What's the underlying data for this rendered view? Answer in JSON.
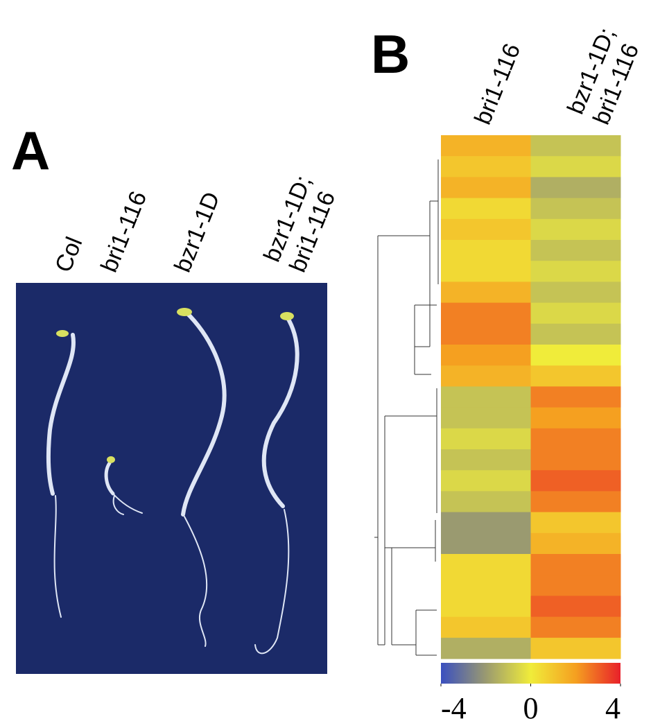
{
  "panel_a": {
    "label": "A",
    "lanes": [
      {
        "lines": [
          "Col"
        ]
      },
      {
        "lines": [
          "bri1-116"
        ]
      },
      {
        "lines": [
          "bzr1-1D"
        ]
      },
      {
        "lines": [
          "bzr1-1D;",
          "bri1-116"
        ]
      }
    ]
  },
  "panel_b": {
    "label": "B",
    "columns": [
      {
        "lines": [
          "bri1-116"
        ]
      },
      {
        "lines": [
          "bzr1-1D;",
          "bri1-116"
        ]
      }
    ],
    "heatmap": {
      "values": [
        [
          1.5,
          -1
        ],
        [
          1,
          -0.5
        ],
        [
          1.5,
          -1.5
        ],
        [
          0.5,
          -1
        ],
        [
          1,
          -0.5
        ],
        [
          0.5,
          -1
        ],
        [
          0.5,
          -0.5
        ],
        [
          1.5,
          -1
        ],
        [
          2.5,
          -0.5
        ],
        [
          2.5,
          -1
        ],
        [
          2,
          0
        ],
        [
          1.5,
          1
        ],
        [
          -1,
          2.5
        ],
        [
          -1,
          2
        ],
        [
          -0.5,
          2.5
        ],
        [
          -1,
          2.5
        ],
        [
          -0.5,
          3
        ],
        [
          -1,
          2.5
        ],
        [
          -2,
          1
        ],
        [
          -2,
          1.5
        ],
        [
          0.5,
          2.5
        ],
        [
          0.5,
          2.5
        ],
        [
          0.5,
          3
        ],
        [
          1,
          2.5
        ],
        [
          -1.5,
          1
        ]
      ]
    },
    "colorbar": {
      "lim": [
        -4,
        4
      ],
      "ticks": [
        -4,
        0,
        4
      ],
      "colors": [
        "#3a4fc0",
        "#9a9a70",
        "#f0ec3a",
        "#f5a020",
        "#e8202a"
      ]
    }
  }
}
